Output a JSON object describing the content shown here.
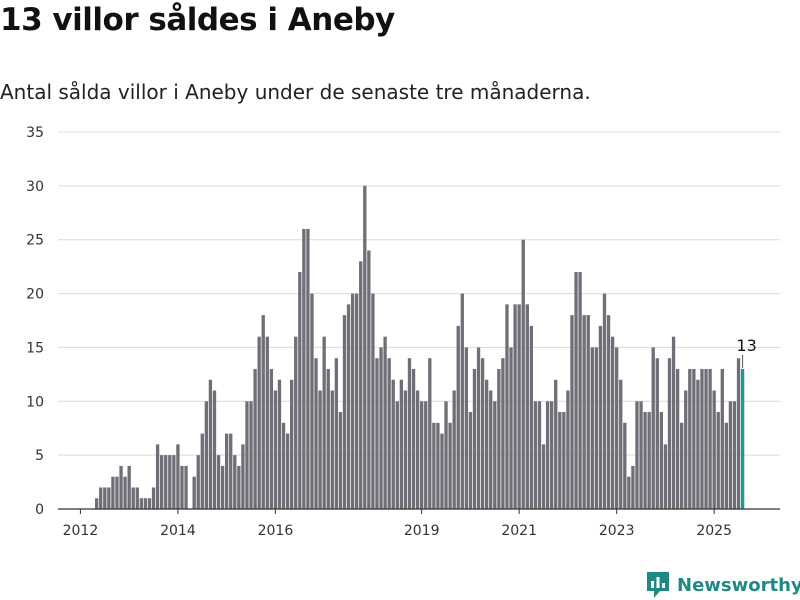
{
  "title": "13 villor såldes i Aneby",
  "subtitle": "Antal sålda villor i Aneby under de senaste tre månaderna.",
  "brand": {
    "name": "Newsworthy",
    "color": "#1f8a84",
    "icon": "newsworthy-logo-icon"
  },
  "colors": {
    "bar": "#6f6f77",
    "highlight": "#1a9b95",
    "grid": "#dcdcdc",
    "axis": "#333333"
  },
  "chart_data": {
    "type": "bar",
    "x_start": "2012-05",
    "frequency": "monthly",
    "ylim": [
      0,
      35
    ],
    "yticks": [
      0,
      5,
      10,
      15,
      20,
      25,
      30,
      35
    ],
    "xtick_labels": [
      "2012",
      "2014",
      "2016",
      "2019",
      "2021",
      "2023",
      "2025"
    ],
    "xlabel": "",
    "ylabel": "",
    "grid": true,
    "highlight_last": true,
    "annotation": {
      "label": "13",
      "target": "last"
    },
    "values": [
      1,
      2,
      2,
      2,
      3,
      3,
      4,
      3,
      4,
      2,
      2,
      1,
      1,
      1,
      2,
      6,
      5,
      5,
      5,
      5,
      6,
      4,
      4,
      0,
      3,
      5,
      7,
      10,
      12,
      11,
      5,
      4,
      7,
      7,
      5,
      4,
      6,
      10,
      10,
      13,
      16,
      18,
      16,
      13,
      11,
      12,
      8,
      7,
      12,
      16,
      22,
      26,
      26,
      20,
      14,
      11,
      16,
      13,
      11,
      14,
      9,
      18,
      19,
      20,
      20,
      23,
      30,
      24,
      20,
      14,
      15,
      16,
      14,
      12,
      10,
      12,
      11,
      14,
      13,
      11,
      10,
      10,
      14,
      8,
      8,
      7,
      10,
      8,
      11,
      17,
      20,
      15,
      9,
      13,
      15,
      14,
      12,
      11,
      10,
      13,
      14,
      19,
      15,
      19,
      19,
      25,
      19,
      17,
      10,
      10,
      6,
      10,
      10,
      12,
      9,
      9,
      11,
      18,
      22,
      22,
      18,
      18,
      15,
      15,
      17,
      20,
      18,
      16,
      15,
      12,
      8,
      3,
      4,
      10,
      10,
      9,
      9,
      15,
      14,
      9,
      6,
      14,
      16,
      13,
      8,
      11,
      13,
      13,
      12,
      13,
      13,
      13,
      11,
      9,
      13,
      8,
      10,
      10,
      14,
      13
    ]
  }
}
